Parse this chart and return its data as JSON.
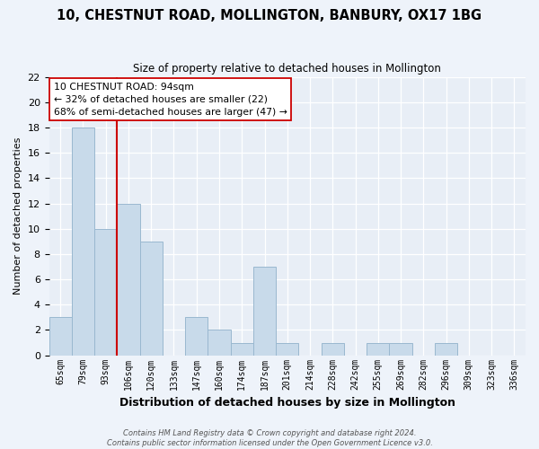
{
  "title": "10, CHESTNUT ROAD, MOLLINGTON, BANBURY, OX17 1BG",
  "subtitle": "Size of property relative to detached houses in Mollington",
  "xlabel": "Distribution of detached houses by size in Mollington",
  "ylabel": "Number of detached properties",
  "bin_labels": [
    "65sqm",
    "79sqm",
    "93sqm",
    "106sqm",
    "120sqm",
    "133sqm",
    "147sqm",
    "160sqm",
    "174sqm",
    "187sqm",
    "201sqm",
    "214sqm",
    "228sqm",
    "242sqm",
    "255sqm",
    "269sqm",
    "282sqm",
    "296sqm",
    "309sqm",
    "323sqm",
    "336sqm"
  ],
  "bar_heights": [
    3,
    18,
    10,
    12,
    9,
    0,
    3,
    2,
    1,
    7,
    1,
    0,
    1,
    0,
    1,
    1,
    0,
    1,
    0,
    0,
    0
  ],
  "bar_color": "#c8daea",
  "bar_edge_color": "#9ab8d0",
  "vline_index": 2,
  "vline_color": "#cc0000",
  "annotation_line1": "10 CHESTNUT ROAD: 94sqm",
  "annotation_line2": "← 32% of detached houses are smaller (22)",
  "annotation_line3": "68% of semi-detached houses are larger (47) →",
  "footer1": "Contains HM Land Registry data © Crown copyright and database right 2024.",
  "footer2": "Contains public sector information licensed under the Open Government Licence v3.0.",
  "ylim_max": 22,
  "background_color": "#eef3fa",
  "plot_bg_color": "#e8eef6",
  "grid_color": "#ffffff"
}
